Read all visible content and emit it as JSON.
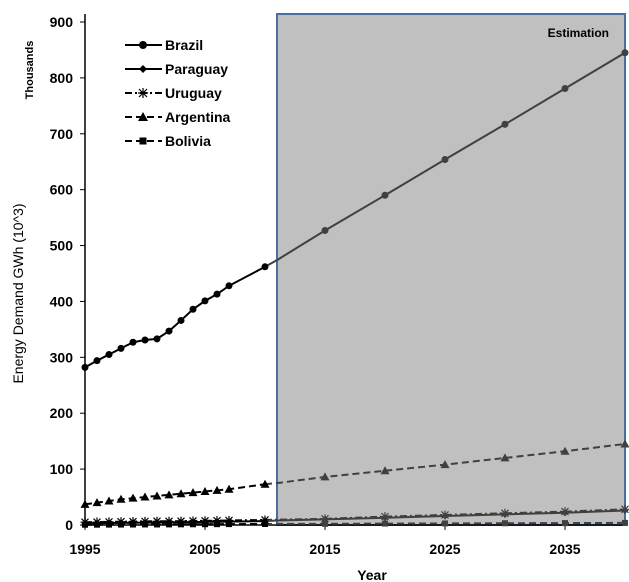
{
  "chart_data": {
    "type": "line",
    "title": "",
    "xlabel": "Year",
    "ylabel": "Energy Demand GWh (10^3)",
    "y_unit_note": "Thousands",
    "xlim": [
      1995,
      2040
    ],
    "ylim": [
      0,
      900
    ],
    "x_ticks": [
      1995,
      2005,
      2015,
      2025,
      2035
    ],
    "y_ticks": [
      0,
      100,
      200,
      300,
      400,
      500,
      600,
      700,
      800,
      900
    ],
    "grid": false,
    "legend_position": "top-left",
    "annotation": {
      "text": "Estimation",
      "x_range": [
        2011,
        2040
      ],
      "fill": "#c0c0c0"
    },
    "series": [
      {
        "name": "Brazil",
        "marker": "circle",
        "dash": "solid",
        "points": [
          [
            1995,
            282
          ],
          [
            1996,
            294
          ],
          [
            1997,
            305
          ],
          [
            1998,
            316
          ],
          [
            1999,
            327
          ],
          [
            2000,
            331
          ],
          [
            2001,
            333
          ],
          [
            2002,
            347
          ],
          [
            2003,
            366
          ],
          [
            2004,
            386
          ],
          [
            2005,
            401
          ],
          [
            2006,
            413
          ],
          [
            2007,
            428
          ],
          [
            2010,
            462
          ]
        ],
        "projection": [
          [
            2011,
            474
          ],
          [
            2015,
            527
          ],
          [
            2020,
            590
          ],
          [
            2025,
            654
          ],
          [
            2030,
            717
          ],
          [
            2035,
            781
          ],
          [
            2040,
            845
          ]
        ]
      },
      {
        "name": "Paraguay",
        "marker": "diamond",
        "dash": "solid",
        "points": [
          [
            1995,
            3
          ],
          [
            1996,
            3.2
          ],
          [
            1997,
            3.5
          ],
          [
            1998,
            3.8
          ],
          [
            1999,
            4
          ],
          [
            2000,
            4.2
          ],
          [
            2001,
            4.4
          ],
          [
            2002,
            4.6
          ],
          [
            2003,
            4.9
          ],
          [
            2004,
            5.2
          ],
          [
            2005,
            5.5
          ],
          [
            2006,
            5.8
          ],
          [
            2007,
            6.1
          ],
          [
            2010,
            7
          ]
        ],
        "projection": [
          [
            2011,
            8
          ],
          [
            2015,
            10
          ],
          [
            2020,
            13
          ],
          [
            2025,
            16
          ],
          [
            2030,
            19
          ],
          [
            2035,
            22
          ],
          [
            2040,
            26
          ]
        ]
      },
      {
        "name": "Uruguay",
        "marker": "star",
        "dash": "dash-dot",
        "points": [
          [
            1995,
            5
          ],
          [
            1996,
            5.3
          ],
          [
            1997,
            5.6
          ],
          [
            1998,
            5.9
          ],
          [
            1999,
            6.2
          ],
          [
            2000,
            6.5
          ],
          [
            2001,
            6.8
          ],
          [
            2002,
            6.6
          ],
          [
            2003,
            6.9
          ],
          [
            2004,
            7.2
          ],
          [
            2005,
            7.5
          ],
          [
            2006,
            7.8
          ],
          [
            2007,
            8.1
          ],
          [
            2010,
            9
          ]
        ],
        "projection": [
          [
            2011,
            9.5
          ],
          [
            2015,
            11
          ],
          [
            2020,
            15
          ],
          [
            2025,
            18
          ],
          [
            2030,
            21
          ],
          [
            2035,
            24
          ],
          [
            2040,
            28
          ]
        ]
      },
      {
        "name": "Argentina",
        "marker": "triangle",
        "dash": "dashed",
        "points": [
          [
            1995,
            37
          ],
          [
            1996,
            40
          ],
          [
            1997,
            43
          ],
          [
            1998,
            46
          ],
          [
            1999,
            48
          ],
          [
            2000,
            50
          ],
          [
            2001,
            52
          ],
          [
            2002,
            54
          ],
          [
            2003,
            56
          ],
          [
            2004,
            58
          ],
          [
            2005,
            60
          ],
          [
            2006,
            62
          ],
          [
            2007,
            64
          ],
          [
            2010,
            73
          ]
        ],
        "projection": [
          [
            2011,
            75
          ],
          [
            2015,
            86
          ],
          [
            2020,
            97
          ],
          [
            2025,
            108
          ],
          [
            2030,
            120
          ],
          [
            2035,
            132
          ],
          [
            2040,
            145
          ]
        ]
      },
      {
        "name": "Bolivia",
        "marker": "square",
        "dash": "dashed",
        "points": [
          [
            1995,
            0.5
          ],
          [
            1996,
            0.6
          ],
          [
            1997,
            0.7
          ],
          [
            1998,
            0.8
          ],
          [
            1999,
            0.9
          ],
          [
            2000,
            1
          ],
          [
            2001,
            1
          ],
          [
            2002,
            1.1
          ],
          [
            2003,
            1.2
          ],
          [
            2004,
            1.3
          ],
          [
            2005,
            1.4
          ],
          [
            2006,
            1.5
          ],
          [
            2007,
            1.6
          ],
          [
            2010,
            1.8
          ]
        ],
        "projection": [
          [
            2011,
            1.9
          ],
          [
            2015,
            2.1
          ],
          [
            2020,
            2.5
          ],
          [
            2025,
            2.8
          ],
          [
            2030,
            3.1
          ],
          [
            2035,
            3.4
          ],
          [
            2040,
            3.8
          ]
        ]
      }
    ],
    "colors": {
      "observed": "#000000",
      "estimated": "#404040",
      "shade": "#c0c0c0",
      "shade_border": "#4a6ea0"
    }
  }
}
